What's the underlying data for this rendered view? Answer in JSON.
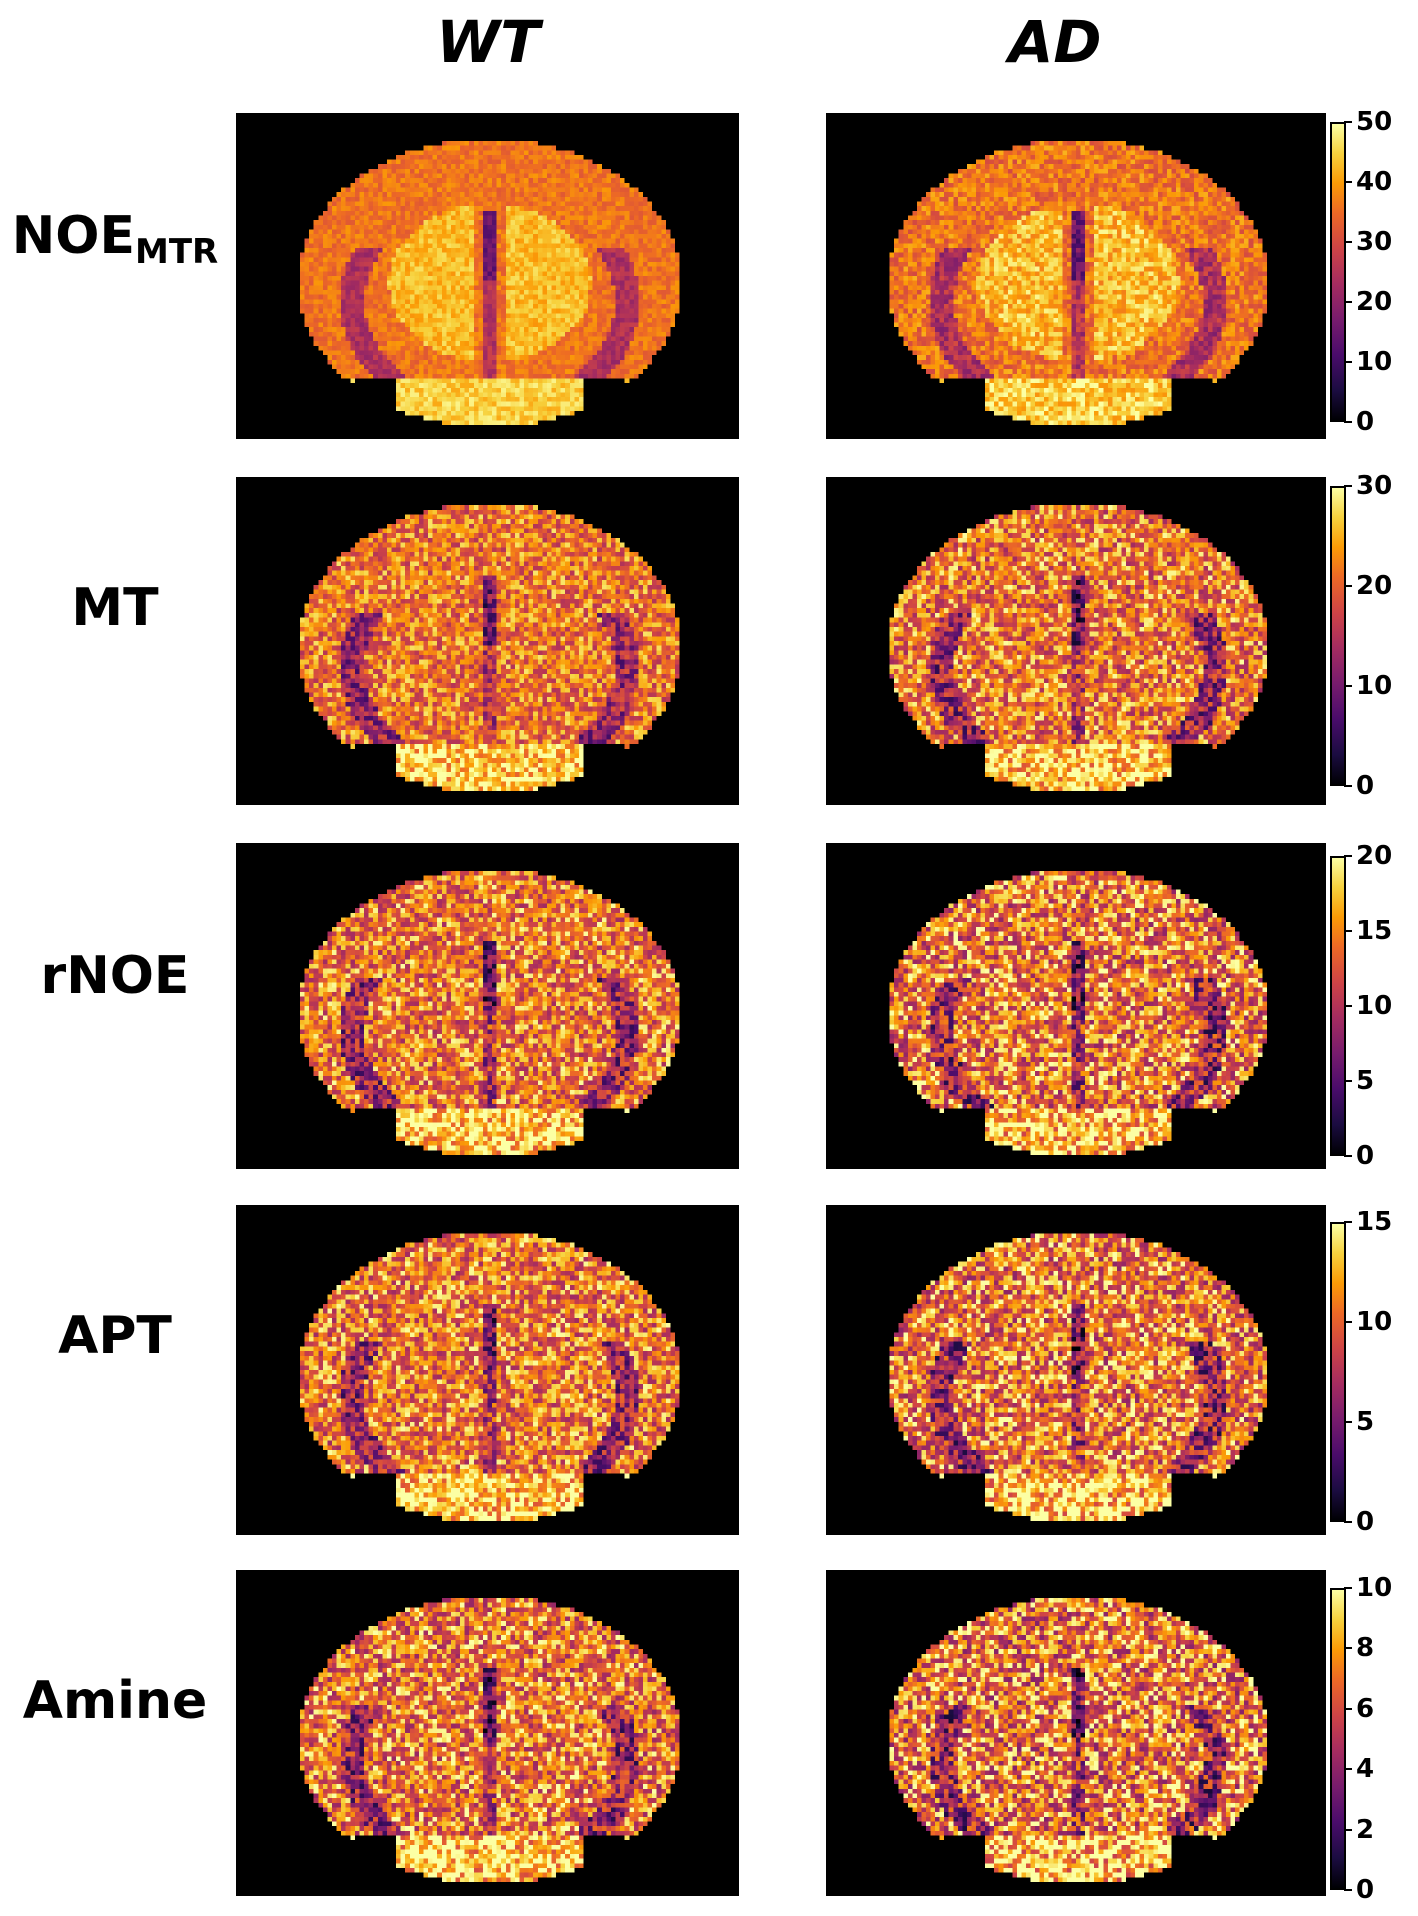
{
  "columns": [
    "WT",
    "AD"
  ],
  "rows": [
    {
      "label": "NOE",
      "sub": "MTR",
      "ticks": [
        "0",
        "10",
        "20",
        "30",
        "40",
        "50"
      ]
    },
    {
      "label": "MT",
      "sub": "",
      "ticks": [
        "0",
        "10",
        "20",
        "30"
      ]
    },
    {
      "label": "rNOE",
      "sub": "",
      "ticks": [
        "0",
        "5",
        "10",
        "15",
        "20"
      ]
    },
    {
      "label": "APT",
      "sub": "",
      "ticks": [
        "0",
        "5",
        "10",
        "15"
      ]
    },
    {
      "label": "Amine",
      "sub": "",
      "ticks": [
        "0",
        "2",
        "4",
        "6",
        "8",
        "10"
      ]
    }
  ],
  "colormap": "inferno",
  "colors": {
    "background": "#000000",
    "low": "#000004",
    "high": "#fcffa4"
  }
}
